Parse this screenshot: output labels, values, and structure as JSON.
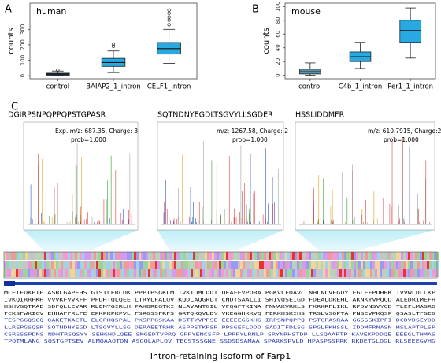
{
  "chart_data": [
    {
      "type": "box",
      "panel": "A",
      "title": "human",
      "ylabel": "counts",
      "categories": [
        "control",
        "BAIAP2_1_intron",
        "CELF1_intron"
      ],
      "boxes": [
        {
          "min": 0,
          "q1": 3,
          "median": 10,
          "q3": 16,
          "max": 30,
          "outliers": [
            36
          ]
        },
        {
          "min": 20,
          "q1": 60,
          "median": 85,
          "q3": 112,
          "max": 160,
          "outliers": [
            190,
            205
          ]
        },
        {
          "min": 80,
          "q1": 140,
          "median": 175,
          "q3": 215,
          "max": 300,
          "outliers": [
            330,
            360,
            380,
            405,
            425
          ]
        }
      ],
      "colors": [
        "#1b6f8f",
        "#27aae1",
        "#27aae1"
      ],
      "ylim": [
        -20,
        470
      ],
      "yticks": [
        0,
        100,
        200,
        300
      ]
    },
    {
      "type": "box",
      "panel": "B",
      "title": "mouse",
      "ylabel": "counts",
      "categories": [
        "control",
        "C4b_1_intron",
        "Per1_1_intron"
      ],
      "boxes": [
        {
          "min": 0,
          "q1": 2,
          "median": 5,
          "q3": 9,
          "max": 18,
          "outliers": []
        },
        {
          "min": 10,
          "q1": 20,
          "median": 27,
          "q3": 34,
          "max": 48,
          "outliers": []
        },
        {
          "min": 25,
          "q1": 48,
          "median": 65,
          "q3": 80,
          "max": 98,
          "outliers": []
        }
      ],
      "colors": [
        "#5d8fa8",
        "#27aae1",
        "#27aae1"
      ],
      "ylim": [
        -5,
        105
      ],
      "yticks": [
        0,
        20,
        40,
        60,
        80,
        100
      ]
    }
  ],
  "panel_c": {
    "label": "C",
    "spectra": [
      {
        "peptide": "DGIRPSNPQPPQPSTGPASR",
        "mz": "Exp. m/z: 687.35, Charge: 3",
        "prob": "prob=1.000"
      },
      {
        "peptide": "SQTNDNYEGDLTSGVYLLSGDER",
        "mz": "m/z: 1267.58, Charge: 2",
        "prob": "prob=1.000"
      },
      {
        "peptide": "HSSLIDDMFR",
        "mz": "m/z: 610.7915, Charge:2",
        "prob": "prob=1.000"
      }
    ],
    "sequence": [
      "MCEIEQKPTP ASRLGAPEHS GISTLERCQK PPPTPSGKLM TVKIQMLDDT QEAFEVPQRA PGKVLFDAVC NHLNLVEGDY FGLEFPDHRK IVVWLDLLKP",
      "IVKQIRRPKH VVVKFVVKFF PPDHTQLQEE LTRYLFALQV KQDLAQGRLT CNDTSAALLI SHIVQSEIGD FDEALDREHL AKNKYVPQQD ALEDRIMEFH",
      "HSHVGQTPAE SDFQLLEVAR RLEMYGIRLH PAKDREGTKI NLAVANTGIL VFQGFTKINA FNWAKVRKLS FKRKRFLIKL RPDVNSVYQD TLEFLMAGRD",
      "FCKSFWKICV EHHAFFRLFE EPKPKPKPVL FSRGSSFRFS GRTQKQVLDY VKEGGHKKVQ FERKHSKIHS TRSLVSQPTA PNSEVPKQSP QSASLTFGEG",
      "TESPGGQSCQ QAKETKACTL ELGPHQSPAL PKSPPGSKAA DGTTYVPPSE EEEEEGGKHG IRPSNPQPPQ PSTGPASRAA GGSSSKIPFI DCDVDSEYDD",
      "LLREPGSQSR SQTNDNYEGD LTSGVYLLSG DERAEETRHR ASPPSTKPSR PPSGEFLDDD SADITFDLSG SPGLPKHSSL IDDMFRNASN HSLAPTPLSP",
      "CSRSSSPDNS NDHTRSQSYY SEHGHDLQEE SMGEDTVPRQ GPPYENCSFP LPRPYLRNLP SRYNRHSTDP LLSQAAPTP KAVEKPDDQE EEEGLTHMAS",
      "TPQTMLANG SQSTGPTSEV ALMQAAQTDN ASGQLAPLQV TECSTSSGNE SSDSDSAMAA SPARKSPVLD HPASPSSPRK RKDETGLQGL RLSEEEGVHG"
    ],
    "caption": "Intron-retaining isoform of Farp1"
  }
}
